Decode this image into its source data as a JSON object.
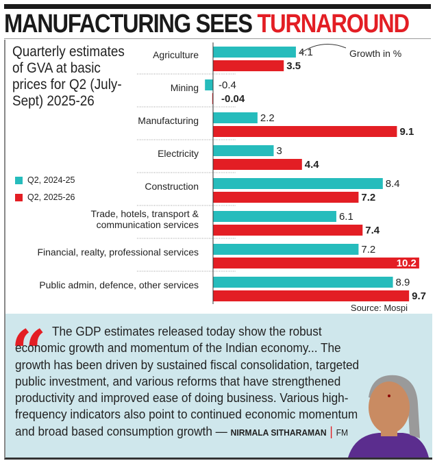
{
  "headline": {
    "part1": "MANUFACTURING SEES",
    "part2": "TURNAROUND"
  },
  "colors": {
    "accent_red": "#e31e24",
    "teal": "#26bcbc",
    "quote_bg": "#cfe7ec"
  },
  "chart_data": {
    "type": "bar",
    "orientation": "horizontal",
    "title": "Quarterly estimates of GVA at basic prices for Q2 (July-Sept) 2025-26",
    "annotation": "Growth in %",
    "source": "Source: Mospi",
    "legend_placement": "left",
    "categories": [
      "Agriculture",
      "Mining",
      "Manufacturing",
      "Electricity",
      "Construction",
      "Trade, hotels, transport & communication services",
      "Financial, realty, professional services",
      "Public admin, defence, other services"
    ],
    "series": [
      {
        "name": "Q2, 2024-25",
        "color": "#26bcbc",
        "values": [
          4.1,
          -0.4,
          2.2,
          3,
          8.4,
          6.1,
          7.2,
          8.9
        ],
        "labels": [
          "4.1",
          "-0.4",
          "2.2",
          "3",
          "8.4",
          "6.1",
          "7.2",
          "8.9"
        ]
      },
      {
        "name": "Q2, 2025-26",
        "color": "#e31e24",
        "values": [
          3.5,
          -0.04,
          9.1,
          4.4,
          7.2,
          7.4,
          10.2,
          9.7
        ],
        "labels": [
          "3.5",
          "-0.04",
          "9.1",
          "4.4",
          "7.2",
          "7.4",
          "10.2",
          "9.7"
        ]
      }
    ],
    "grid": false
  },
  "quote": {
    "text": "The GDP estimates released today show the robust economic growth and momentum of the Indian economy... The growth has been driven by sustained fiscal consolidation, targeted public investment, and various reforms that have strengthened productivity and improved ease of doing business. Various high-frequency indicators also point to continued economic momentum and broad based consumption growth —",
    "speaker": "NIRMALA SITHARAMAN",
    "role": "FM"
  }
}
